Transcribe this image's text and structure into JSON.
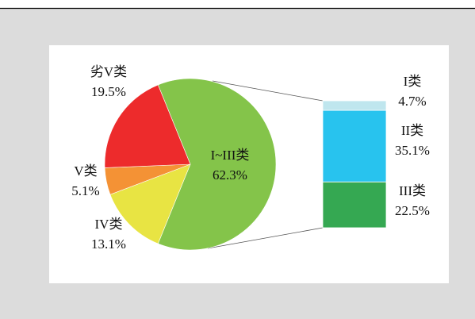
{
  "chart_data": [
    {
      "type": "pie",
      "categories": [
        "I~III类",
        "IV类",
        "V类",
        "劣V类"
      ],
      "values": [
        62.3,
        13.1,
        5.1,
        19.5
      ],
      "value_labels": [
        "62.3%",
        "13.1%",
        "5.1%",
        "19.5%"
      ],
      "colors": [
        "#84c44a",
        "#e8e443",
        "#f49235",
        "#ed2b2c"
      ]
    },
    {
      "type": "bar",
      "stacked": true,
      "categories": [
        "I类",
        "II类",
        "III类"
      ],
      "values": [
        4.7,
        35.1,
        22.5
      ],
      "value_labels": [
        "4.7%",
        "35.1%",
        "22.5%"
      ],
      "colors": [
        "#bfe6ee",
        "#28c3ee",
        "#35a852"
      ]
    }
  ]
}
